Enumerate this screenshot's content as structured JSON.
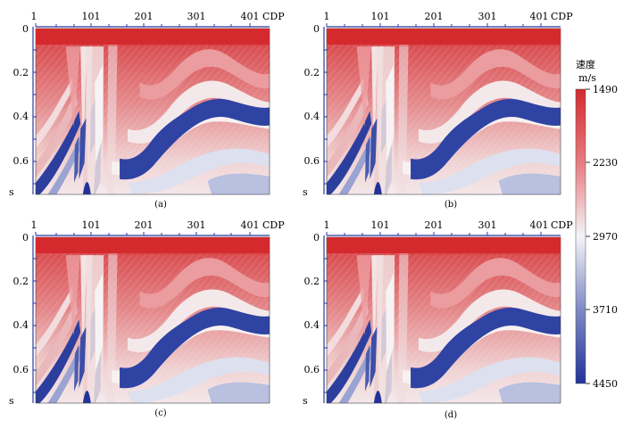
{
  "panels": [
    {
      "id": "a",
      "caption": "(a)"
    },
    {
      "id": "b",
      "caption": "(b)"
    },
    {
      "id": "c",
      "caption": "(c)"
    },
    {
      "id": "d",
      "caption": "(d)"
    }
  ],
  "x_axis": {
    "ticks": [
      "1",
      "101",
      "201",
      "301",
      "401"
    ],
    "label": "CDP"
  },
  "y_axis": {
    "ticks": [
      "0",
      "0.2",
      "0.4",
      "0.6"
    ],
    "unit": "s"
  },
  "colorbar": {
    "title": "速度",
    "unit": "m/s",
    "ticks": [
      "1490",
      "2230",
      "2970",
      "3710",
      "4450"
    ],
    "colors": {
      "low": "#d42a2e",
      "mid": "#f4f4f7",
      "high": "#21339a"
    }
  }
}
